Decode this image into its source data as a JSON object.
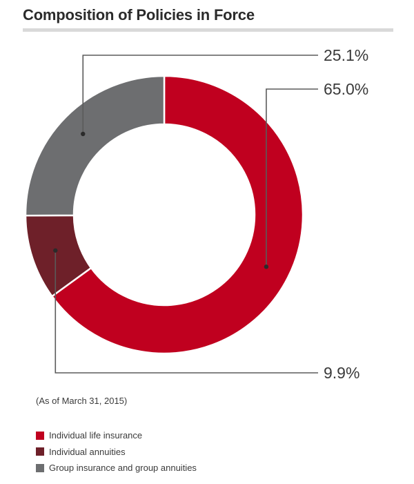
{
  "chart_data": {
    "type": "pie",
    "title": "Composition of Policies in Force",
    "note": "(As of March 31, 2015)",
    "legend_position": "bottom-left",
    "slices": [
      {
        "name": "Individual life insurance",
        "value": 65.0,
        "label": "65.0%",
        "color": "#c0001f"
      },
      {
        "name": "Individual annuities",
        "value": 9.9,
        "label": "9.9%",
        "color": "#6e2029"
      },
      {
        "name": "Group insurance and group annuities",
        "value": 25.1,
        "label": "25.1%",
        "color": "#6d6e70"
      }
    ]
  }
}
